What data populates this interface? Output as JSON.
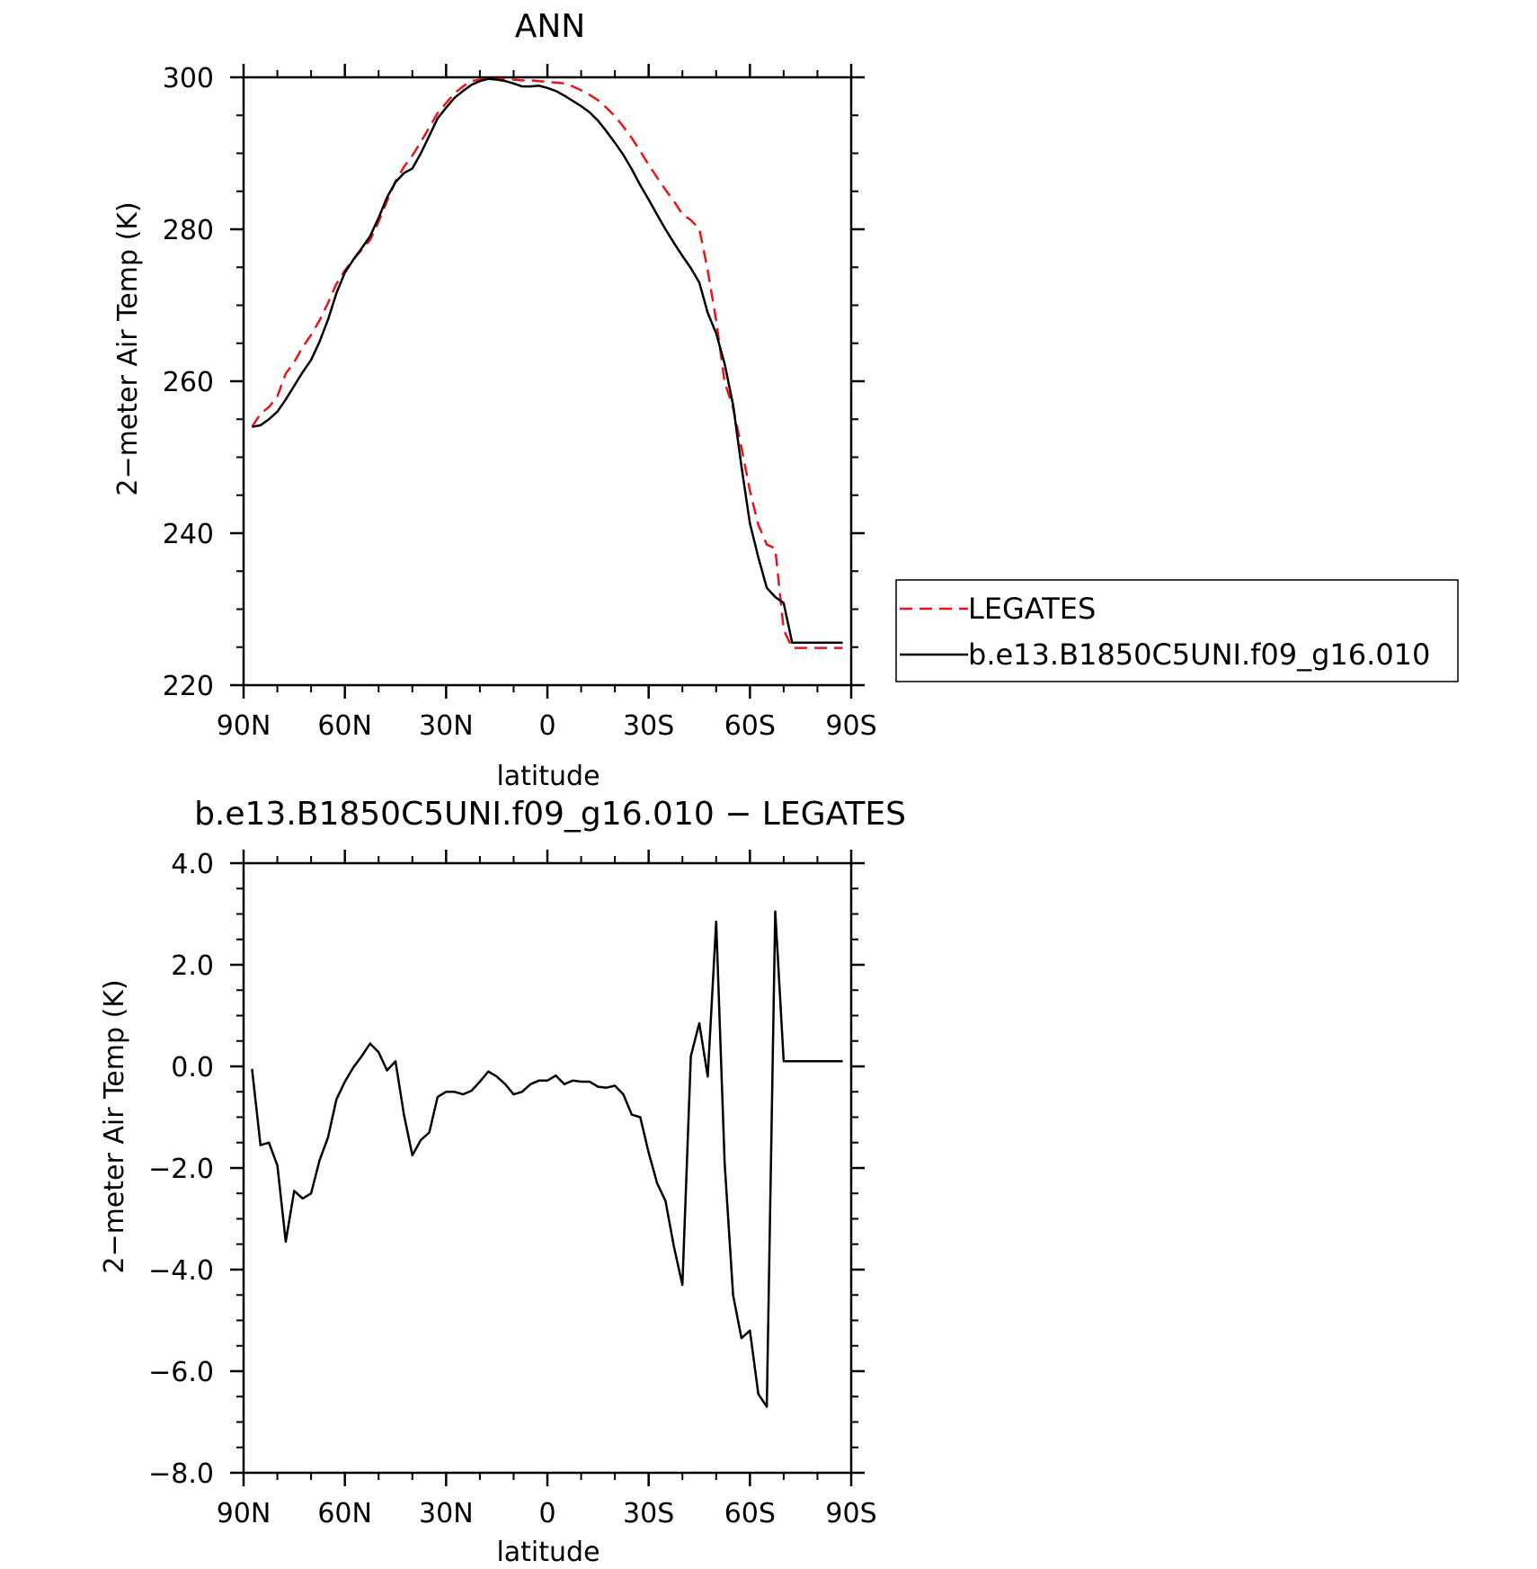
{
  "chart_data": [
    {
      "type": "line",
      "title": "ANN",
      "xlabel": "latitude",
      "ylabel": "2−meter Air Temp (K)",
      "xlim": [
        90,
        -90
      ],
      "ylim": [
        220,
        300
      ],
      "xticks": [
        90,
        60,
        30,
        0,
        -30,
        -60,
        -90
      ],
      "xtick_labels": [
        "90N",
        "60N",
        "30N",
        "0",
        "30S",
        "60S",
        "90S"
      ],
      "yticks": [
        220,
        240,
        260,
        280,
        300
      ],
      "ytick_labels": [
        "220",
        "240",
        "260",
        "280",
        "300"
      ],
      "grid": false,
      "legend_position": "right",
      "series": [
        {
          "name": "LEGATES",
          "color": "#e8141c",
          "dash": "dashed",
          "x": [
            87.5,
            85,
            82.5,
            80,
            77.5,
            75,
            72.5,
            70,
            67.5,
            65,
            62.5,
            60,
            57.5,
            55,
            52.5,
            50,
            47.5,
            45,
            42.5,
            40,
            37.5,
            35,
            32.5,
            30,
            27.5,
            25,
            22.5,
            20,
            17.5,
            15,
            12.5,
            10,
            7.5,
            5,
            2.5,
            0,
            -2.5,
            -5,
            -7.5,
            -10,
            -12.5,
            -15,
            -17.5,
            -20,
            -22.5,
            -25,
            -27.5,
            -30,
            -32.5,
            -35,
            -37.5,
            -40,
            -42.5,
            -45,
            -47.5,
            -50,
            -52.5,
            -55,
            -57.5,
            -60,
            -62.5,
            -65,
            -67.5,
            -70,
            -72.5,
            -75,
            -77.5,
            -80,
            -82.5,
            -85,
            -87.5
          ],
          "y": [
            254.0,
            255.7,
            256.6,
            258.0,
            261.0,
            262.5,
            264.5,
            266.1,
            268.0,
            270.3,
            272.8,
            274.6,
            276.0,
            277.3,
            278.6,
            281.0,
            283.7,
            286.3,
            288.2,
            289.7,
            291.5,
            293.4,
            295.3,
            296.6,
            297.9,
            298.8,
            299.5,
            299.7,
            299.8,
            299.8,
            299.8,
            299.7,
            299.6,
            299.6,
            299.5,
            299.4,
            299.3,
            299.2,
            298.8,
            298.3,
            297.7,
            297.0,
            296.0,
            294.9,
            293.5,
            292.0,
            290.3,
            288.5,
            286.8,
            285.2,
            283.7,
            282.0,
            281.2,
            280.1,
            274.6,
            268.0,
            259.9,
            256.5,
            251.3,
            245.6,
            241.1,
            238.5,
            238.0,
            227.3,
            224.9,
            224.9,
            224.9,
            224.9,
            224.9,
            224.9,
            224.9
          ]
        },
        {
          "name": "b.e13.B1850C5UNI.f09_g16.010",
          "color": "#000000",
          "dash": "solid",
          "x": [
            87.5,
            85,
            82.5,
            80,
            77.5,
            75,
            72.5,
            70,
            67.5,
            65,
            62.5,
            60,
            57.5,
            55,
            52.5,
            50,
            47.5,
            45,
            42.5,
            40,
            37.5,
            35,
            32.5,
            30,
            27.5,
            25,
            22.5,
            20,
            17.5,
            15,
            12.5,
            10,
            7.5,
            5,
            2.5,
            0,
            -2.5,
            -5,
            -7.5,
            -10,
            -12.5,
            -15,
            -17.5,
            -20,
            -22.5,
            -25,
            -27.5,
            -30,
            -32.5,
            -35,
            -37.5,
            -40,
            -42.5,
            -45,
            -47.5,
            -50,
            -52.5,
            -55,
            -57.5,
            -60,
            -62.5,
            -65,
            -67.5,
            -70,
            -72.5,
            -75,
            -77.5,
            -80,
            -82.5,
            -85,
            -87.5
          ],
          "y": [
            254.0,
            254.2,
            255.0,
            256.0,
            257.6,
            259.4,
            261.2,
            262.8,
            265.2,
            268.1,
            271.6,
            274.3,
            276.0,
            277.5,
            279.1,
            281.5,
            284.2,
            286.2,
            287.4,
            288.0,
            290.0,
            292.3,
            294.6,
            296.0,
            297.3,
            298.2,
            299.0,
            299.5,
            299.8,
            299.7,
            299.5,
            299.2,
            298.8,
            298.8,
            298.9,
            298.6,
            298.2,
            297.6,
            296.9,
            296.2,
            295.4,
            294.3,
            292.9,
            291.4,
            289.8,
            287.9,
            285.8,
            283.9,
            281.9,
            280.0,
            278.2,
            276.5,
            274.9,
            273.0,
            269.0,
            266.3,
            262.3,
            256.9,
            248.8,
            241.3,
            236.8,
            232.8,
            231.6,
            230.8,
            225.6,
            225.6,
            225.6,
            225.6,
            225.6,
            225.6,
            225.6
          ]
        }
      ]
    },
    {
      "type": "line",
      "title": "b.e13.B1850C5UNI.f09_g16.010 − LEGATES",
      "xlabel": "latitude",
      "ylabel": "2−meter Air Temp (K)",
      "xlim": [
        90,
        -90
      ],
      "ylim": [
        -8,
        4
      ],
      "xticks": [
        90,
        60,
        30,
        0,
        -30,
        -60,
        -90
      ],
      "xtick_labels": [
        "90N",
        "60N",
        "30N",
        "0",
        "30S",
        "60S",
        "90S"
      ],
      "yticks": [
        -8,
        -6,
        -4,
        -2,
        0,
        2,
        4
      ],
      "ytick_labels": [
        "−8.0",
        "−6.0",
        "−4.0",
        "−2.0",
        "0.0",
        "2.0",
        "4.0"
      ],
      "grid": false,
      "series": [
        {
          "color": "#000000",
          "dash": "solid",
          "x": [
            87.5,
            85,
            82.5,
            80,
            77.5,
            75,
            72.5,
            70,
            67.5,
            65,
            62.5,
            60,
            57.5,
            55,
            52.5,
            50,
            47.5,
            45,
            42.5,
            40,
            37.5,
            35,
            32.5,
            30,
            27.5,
            25,
            22.5,
            20,
            17.5,
            15,
            12.5,
            10,
            7.5,
            5,
            2.5,
            0,
            -2.5,
            -5,
            -7.5,
            -10,
            -12.5,
            -15,
            -17.5,
            -20,
            -22.5,
            -25,
            -27.5,
            -30,
            -32.5,
            -35,
            -37.5,
            -40,
            -42.5,
            -45,
            -47.5,
            -50,
            -52.5,
            -55,
            -57.5,
            -60,
            -62.5,
            -65,
            -67.5,
            -70,
            -72.5,
            -75,
            -77.5,
            -80,
            -82.5,
            -85,
            -87.5
          ],
          "y": [
            -0.05,
            -1.55,
            -1.5,
            -1.95,
            -3.45,
            -2.45,
            -2.6,
            -2.5,
            -1.85,
            -1.4,
            -0.65,
            -0.3,
            -0.02,
            0.2,
            0.45,
            0.28,
            -0.08,
            0.1,
            -0.95,
            -1.75,
            -1.45,
            -1.3,
            -0.6,
            -0.5,
            -0.5,
            -0.55,
            -0.48,
            -0.3,
            -0.1,
            -0.2,
            -0.35,
            -0.55,
            -0.5,
            -0.35,
            -0.28,
            -0.28,
            -0.18,
            -0.35,
            -0.28,
            -0.3,
            -0.3,
            -0.4,
            -0.42,
            -0.38,
            -0.55,
            -0.95,
            -1.0,
            -1.7,
            -2.3,
            -2.65,
            -3.55,
            -4.3,
            0.2,
            0.85,
            -0.2,
            2.85,
            -1.9,
            -4.5,
            -5.35,
            -5.2,
            -6.45,
            -6.7,
            3.05,
            0.1,
            0.1,
            0.1,
            0.1,
            0.1,
            0.1,
            0.1,
            0.1
          ]
        }
      ]
    }
  ],
  "legend": {
    "entries": [
      "LEGATES",
      "b.e13.B1850C5UNI.f09_g16.010"
    ]
  }
}
